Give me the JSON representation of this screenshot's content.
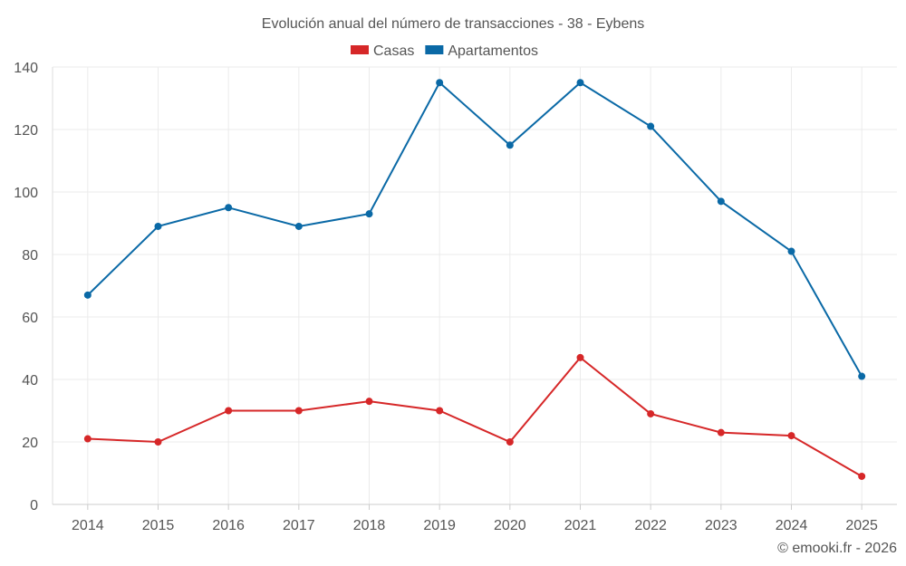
{
  "chart_data": {
    "type": "line",
    "title": "Evolución anual del número de transacciones - 38 - Eybens",
    "xlabel": "",
    "ylabel": "",
    "categories": [
      "2014",
      "2015",
      "2016",
      "2017",
      "2018",
      "2019",
      "2020",
      "2021",
      "2022",
      "2023",
      "2024",
      "2025"
    ],
    "ylim": [
      0,
      140
    ],
    "yticks": [
      0,
      20,
      40,
      60,
      80,
      100,
      120,
      140
    ],
    "grid": true,
    "legend_position": "top-center",
    "series": [
      {
        "name": "Casas",
        "color": "#d62728",
        "values": [
          21,
          20,
          30,
          30,
          33,
          30,
          20,
          47,
          29,
          23,
          22,
          9
        ]
      },
      {
        "name": "Apartamentos",
        "color": "#0a69a6",
        "values": [
          67,
          89,
          95,
          89,
          93,
          135,
          115,
          135,
          121,
          97,
          81,
          41
        ]
      }
    ]
  },
  "credit": "© emooki.fr - 2026"
}
